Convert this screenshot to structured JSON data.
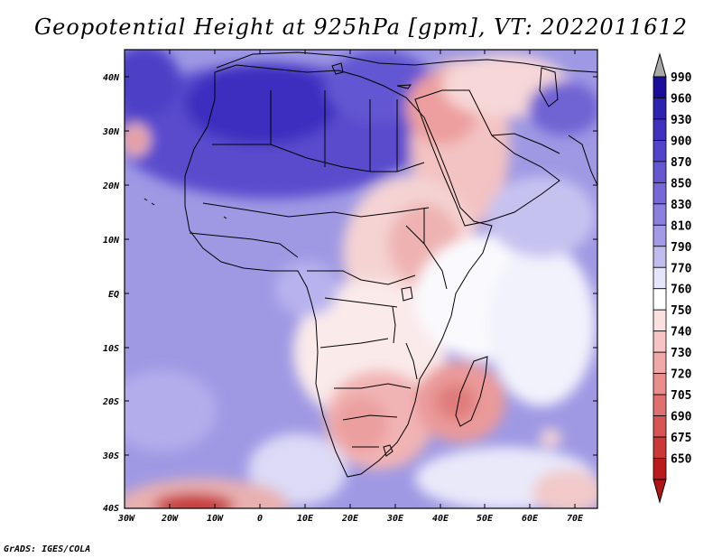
{
  "title": "Geopotential Height at 925hPa [gpm], VT: 2022011612",
  "credit": "GrADS: IGES/COLA",
  "map": {
    "lat_labels": [
      "40N",
      "30N",
      "20N",
      "10N",
      "EQ",
      "10S",
      "20S",
      "30S",
      "40S"
    ],
    "lon_labels": [
      "30W",
      "20W",
      "10W",
      "0",
      "10E",
      "20E",
      "30E",
      "40E",
      "50E",
      "60E",
      "70E"
    ]
  },
  "colorbar": {
    "labels": [
      "990",
      "960",
      "930",
      "900",
      "870",
      "850",
      "830",
      "810",
      "790",
      "770",
      "760",
      "750",
      "740",
      "730",
      "720",
      "705",
      "690",
      "675",
      "650"
    ],
    "colors": [
      "#1a0d9a",
      "#2e22b0",
      "#4030c0",
      "#5244c8",
      "#6457cf",
      "#7668d6",
      "#8a80dd",
      "#a39be5",
      "#c0bcee",
      "#e6e6fa",
      "#ffffff",
      "#fbe0e0",
      "#f6c4c4",
      "#f0a8a8",
      "#e98c8c",
      "#e07070",
      "#d65454",
      "#cc3838",
      "#bb1a1a"
    ],
    "over_color": "#a8a8a8",
    "under_color": "#b01414"
  }
}
